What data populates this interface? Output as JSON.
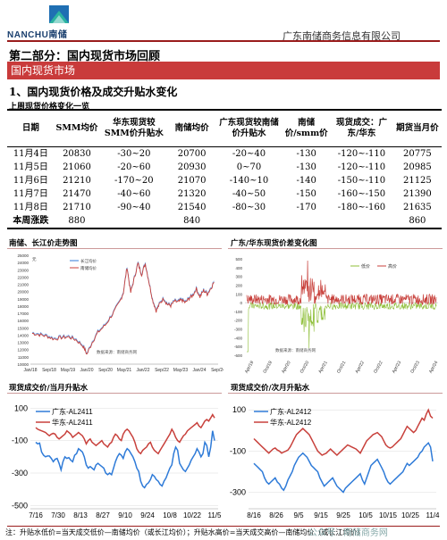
{
  "header": {
    "logo_text": "NANCHU南储",
    "company": "广东南储商务信息有限公司"
  },
  "section_title": "第二部分：国内现货市场回顾",
  "band_title": "国内现货市场",
  "subsection_title": "1、国内现货价格及成交升贴水变化",
  "table": {
    "caption": "上周现货价格变化一览",
    "headers": [
      "日期",
      "SMM均价",
      "华东现货较SMM价升贴水",
      "南储均价",
      "广东现货较南储价升贴水",
      "南储价/smm价",
      "现货成交：广东/华东",
      "期货当月价"
    ],
    "rows": [
      [
        "11月4日",
        "20830",
        "-30~20",
        "20700",
        "-20~40",
        "-130",
        "-120~-110",
        "20775"
      ],
      [
        "11月5日",
        "21060",
        "-20~60",
        "20930",
        "0~70",
        "-130",
        "-120~-110",
        "20985"
      ],
      [
        "11月6日",
        "21210",
        "-170~20",
        "21070",
        "-140~10",
        "-140",
        "-150~-110",
        "21125"
      ],
      [
        "11月7日",
        "21470",
        "-40~60",
        "21320",
        "-40~50",
        "-150",
        "-160~-150",
        "21390"
      ],
      [
        "11月8日",
        "21710",
        "-90~40",
        "21540",
        "-80~30",
        "-170",
        "-180~-160",
        "21635"
      ]
    ],
    "summary": [
      "本周涨跌",
      "880",
      "",
      "840",
      "",
      "",
      "",
      "860"
    ]
  },
  "charts": {
    "c1_title": "南储、长江价走势图",
    "c1_legend": [
      "长江均价",
      "南储均价"
    ],
    "c1_yticks": [
      "25000",
      "24000",
      "23000",
      "22000",
      "21000",
      "20000",
      "19000",
      "18000",
      "17000",
      "16000",
      "15000",
      "14000",
      "13000",
      "12000",
      "11000",
      "10000"
    ],
    "c1_xticks": [
      "Jan/18",
      "Sep/18",
      "May/19",
      "Jan/20",
      "Sep/20",
      "May/21",
      "Jan/22",
      "Sep/22",
      "May/23",
      "Jan/24",
      "Sep/24"
    ],
    "c1_unit": "元",
    "c1_source": "数据来源：南储商务网",
    "c2_title": "广东/华东现货价差变化图",
    "c2_legend": [
      "低价",
      "高价"
    ],
    "c2_yticks": [
      "500",
      "400",
      "300",
      "200",
      "100",
      "0",
      "-100",
      "-200",
      "-300",
      "-400",
      "-500",
      "-600"
    ],
    "c2_xticks": [
      "Apr/19",
      "Oct/19",
      "Apr/20",
      "Oct/20",
      "Apr/21",
      "Oct/21",
      "Apr/22",
      "Oct/22",
      "Apr/23",
      "Oct/23",
      "Apr/24"
    ],
    "c2_source": "数据来源：南储商务网",
    "c3_title": "现货成交价/当月升贴水",
    "c3_legend": [
      "广东-AL2411",
      "华东-AL2411"
    ],
    "c3_yticks": [
      "100",
      "-100",
      "-300",
      "-500"
    ],
    "c3_xticks": [
      "7/16",
      "7/30",
      "8/13",
      "8/27",
      "9/10",
      "9/24",
      "10/8",
      "10/22",
      "11/5"
    ],
    "c4_title": "现货成交价/次月升贴水",
    "c4_legend": [
      "广东-AL2412",
      "华东-AL2412"
    ],
    "c4_yticks": [
      "100",
      "-100",
      "-300"
    ],
    "c4_xticks": [
      "8/16",
      "8/26",
      "9/5",
      "9/15",
      "9/25",
      "10/5",
      "10/15",
      "10/25",
      "11/4"
    ],
    "colors": {
      "blue": "#2f7bd8",
      "red": "#c8413c",
      "green": "#8fbf3a",
      "brown": "#c87a3c"
    }
  },
  "footnote": "注：升贴水低价=当天成交低价—南储均价（或长江均价）；升贴水高价=当天成交高价—南储均价（或长江均价）",
  "watermark": "公众号 · 南储商务网"
}
